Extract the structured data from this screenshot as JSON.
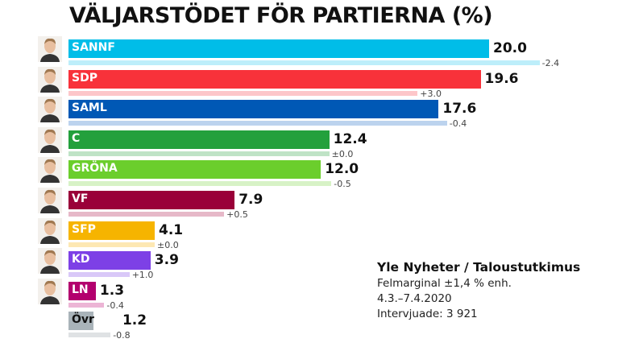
{
  "title": "VÄLJARSTÖDET FÖR PARTIERNA (%)",
  "info": {
    "source": "Yle Nyheter / Taloustutkimus",
    "margin": "Felmarginal ±1,4 % enh.",
    "period": "4.3.–7.4.2020",
    "respondents": "Intervjuade: 3 921"
  },
  "chart_data": {
    "type": "bar",
    "orientation": "horizontal",
    "title": "VÄLJARSTÖDET FÖR PARTIERNA (%)",
    "categories": [
      "SANNF",
      "SDP",
      "SAML",
      "C",
      "GRÖNA",
      "VF",
      "SFP",
      "KD",
      "LN",
      "Övr"
    ],
    "values": [
      20.0,
      19.6,
      17.6,
      12.4,
      12.0,
      7.9,
      4.1,
      3.9,
      1.3,
      1.2
    ],
    "value_labels": [
      "20.0",
      "19.6",
      "17.6",
      "12.4",
      "12.0",
      "7.9",
      "4.1",
      "3.9",
      "1.3",
      "1.2"
    ],
    "change_labels": [
      "-2.4",
      "+3.0",
      "-0.4",
      "±0.0",
      "-0.5",
      "+0.5",
      "±0.0",
      "+1.0",
      "-0.4",
      "-0.8"
    ],
    "colors": [
      "#00bde8",
      "#f8323a",
      "#0058b5",
      "#23a03c",
      "#6bce2c",
      "#9a0039",
      "#f6b400",
      "#7d40e6",
      "#b3006e",
      "#a9b3b9"
    ],
    "prev_colors": [
      "#bdeefa",
      "#fdc6c9",
      "#bcd3ee",
      "#bfe3c6",
      "#d7f2c6",
      "#e6b8c8",
      "#fde8b3",
      "#d9c8f8",
      "#ecb5d5",
      "#dfe2e4"
    ],
    "label_colors": [
      "#fff",
      "#fff",
      "#fff",
      "#fff",
      "#fff",
      "#fff",
      "#fff",
      "#fff",
      "#fff",
      "#111"
    ],
    "has_portrait": [
      true,
      true,
      true,
      true,
      true,
      true,
      true,
      true,
      true,
      false
    ],
    "grid": false,
    "legend": "none"
  }
}
